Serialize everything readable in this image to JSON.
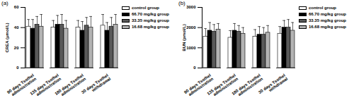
{
  "chart_data": [
    {
      "type": "bar",
      "title": "(a)",
      "y_label": "CREA (μmol/L)",
      "categories": [
        "90 days Tsothel\nadministration",
        "135 days Tsothel\nadministration",
        "180 days Tsothel\nadministration",
        "30 days Tsothel\nwithdrawal"
      ],
      "series": [
        {
          "name": "control group",
          "color": "#ffffff",
          "values": [
            41,
            40,
            40,
            42
          ],
          "errors": [
            7,
            7,
            7,
            11
          ]
        },
        {
          "name": "66.70 mg/kg group",
          "color": "#000000",
          "values": [
            39,
            43,
            37,
            37
          ],
          "errors": [
            9,
            9,
            9,
            8
          ]
        },
        {
          "name": "33.35 mg/kg group",
          "color": "#595959",
          "values": [
            43,
            43,
            42,
            41
          ],
          "errors": [
            8,
            10,
            8,
            9
          ]
        },
        {
          "name": "16.68 mg/kg group",
          "color": "#b3b3b3",
          "values": [
            41,
            39,
            40,
            43
          ],
          "errors": [
            12,
            8,
            11,
            10
          ]
        }
      ],
      "ylim": [
        0,
        60
      ],
      "yticks": [
        0,
        20,
        40,
        60
      ],
      "grid": false,
      "legend": "right"
    },
    {
      "type": "bar",
      "title": "(b)",
      "y_label": "BUN (pmol/L)",
      "categories": [
        "90 days Tsothel\nadministration",
        "135 days Tsothel\nadministration",
        "180 days Tsothel\nadministration",
        "30 days Tsothel\nwithdrawal"
      ],
      "series": [
        {
          "name": "control group",
          "color": "#ffffff",
          "values": [
            1550,
            1500,
            1550,
            1700
          ],
          "errors": [
            400,
            350,
            350,
            350
          ]
        },
        {
          "name": "66.70 mg/kg group",
          "color": "#000000",
          "values": [
            1850,
            1850,
            1650,
            2000
          ],
          "errors": [
            400,
            350,
            400,
            350
          ]
        },
        {
          "name": "33.35 mg/kg group",
          "color": "#595959",
          "values": [
            1800,
            1800,
            1650,
            2000
          ],
          "errors": [
            350,
            300,
            350,
            400
          ]
        },
        {
          "name": "16.68 mg/kg group",
          "color": "#b3b3b3",
          "values": [
            1900,
            1700,
            1750,
            1850
          ],
          "errors": [
            300,
            300,
            350,
            400
          ]
        }
      ],
      "ylim": [
        0,
        3000
      ],
      "yticks": [
        0,
        1000,
        2000,
        3000
      ],
      "grid": false,
      "legend": "right"
    }
  ]
}
